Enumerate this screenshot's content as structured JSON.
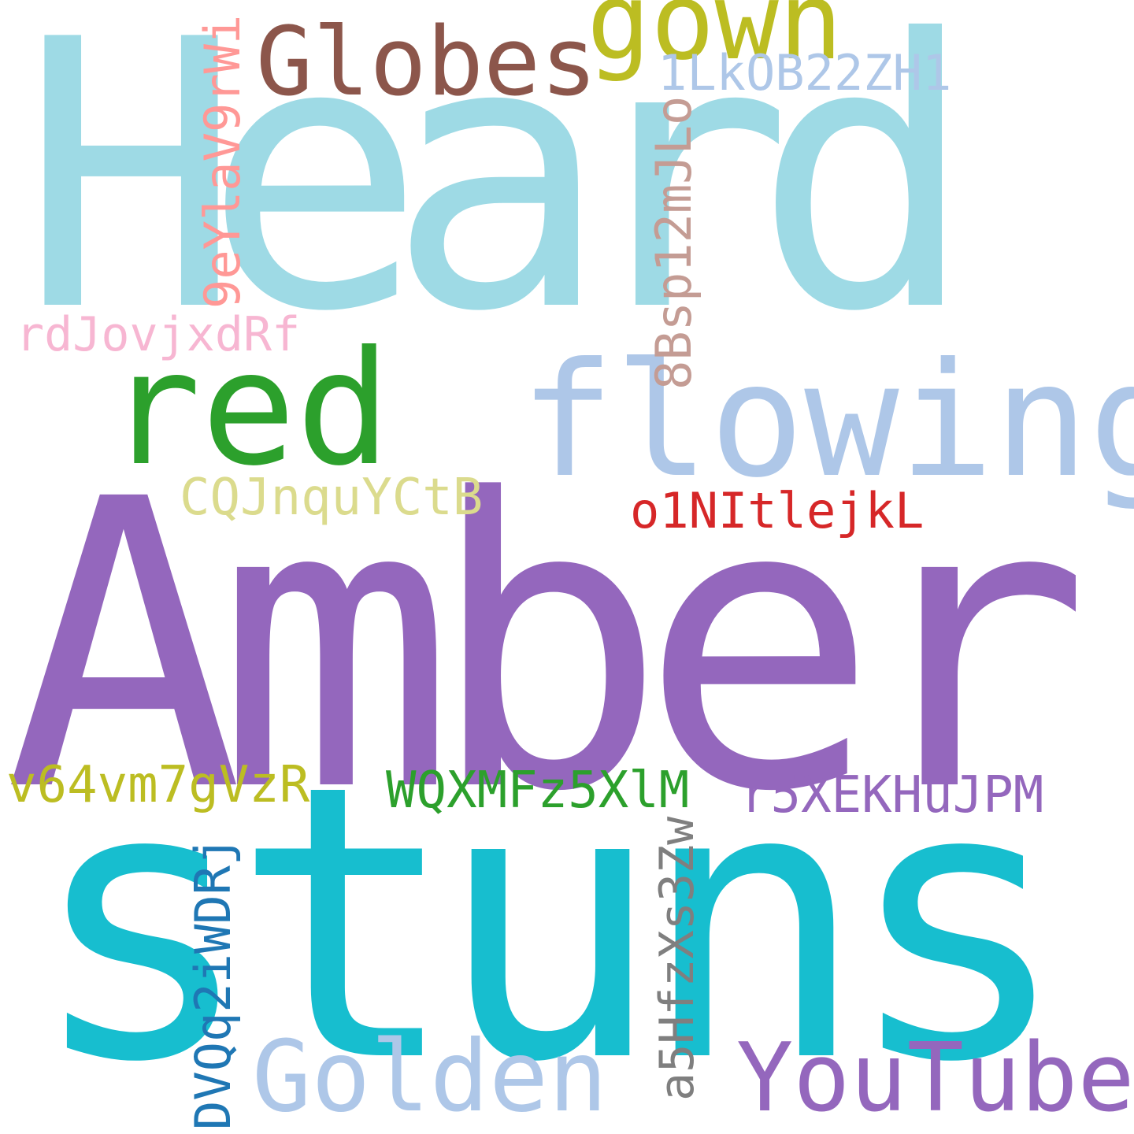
{
  "words": [
    {
      "key": "heard",
      "text": "Heard",
      "color": "#9edae5"
    },
    {
      "key": "amber",
      "text": "Amber",
      "color": "#9467bd"
    },
    {
      "key": "stuns",
      "text": "stuns",
      "color": "#17becf"
    },
    {
      "key": "flowing",
      "text": "flowing",
      "color": "#aec7e8"
    },
    {
      "key": "red",
      "text": "red",
      "color": "#2ca02c"
    },
    {
      "key": "globes",
      "text": "Globes",
      "color": "#8c564b"
    },
    {
      "key": "gown",
      "text": "gown",
      "color": "#bcbd22"
    },
    {
      "key": "golden",
      "text": "Golden",
      "color": "#aec7e8"
    },
    {
      "key": "youtube",
      "text": "YouTube",
      "color": "#9467bd"
    },
    {
      "key": "1lk",
      "text": "1LkOB22ZH1",
      "color": "#aec7e8"
    },
    {
      "key": "8bsp",
      "text": "8Bsp12mJLo",
      "color": "#c49c94"
    },
    {
      "key": "9ey",
      "text": "9eYlaV9rWi",
      "color": "#ff9896"
    },
    {
      "key": "rdj",
      "text": "rdJovjxdRf",
      "color": "#f7b6d2"
    },
    {
      "key": "cqj",
      "text": "CQJnquYCtB",
      "color": "#dbdb8d"
    },
    {
      "key": "o1n",
      "text": "o1NItlejkL",
      "color": "#d62728"
    },
    {
      "key": "v64",
      "text": "v64vm7gVzR",
      "color": "#bcbd22"
    },
    {
      "key": "wqx",
      "text": "WQXMFz5XlM",
      "color": "#2ca02c"
    },
    {
      "key": "r5x",
      "text": "r5XEKHuJPM",
      "color": "#9467bd"
    },
    {
      "key": "dvq",
      "text": "DVQq2iWDRj",
      "color": "#1f77b4"
    },
    {
      "key": "a5h",
      "text": "a5HfzXs3Zw",
      "color": "#7f7f7f"
    }
  ]
}
